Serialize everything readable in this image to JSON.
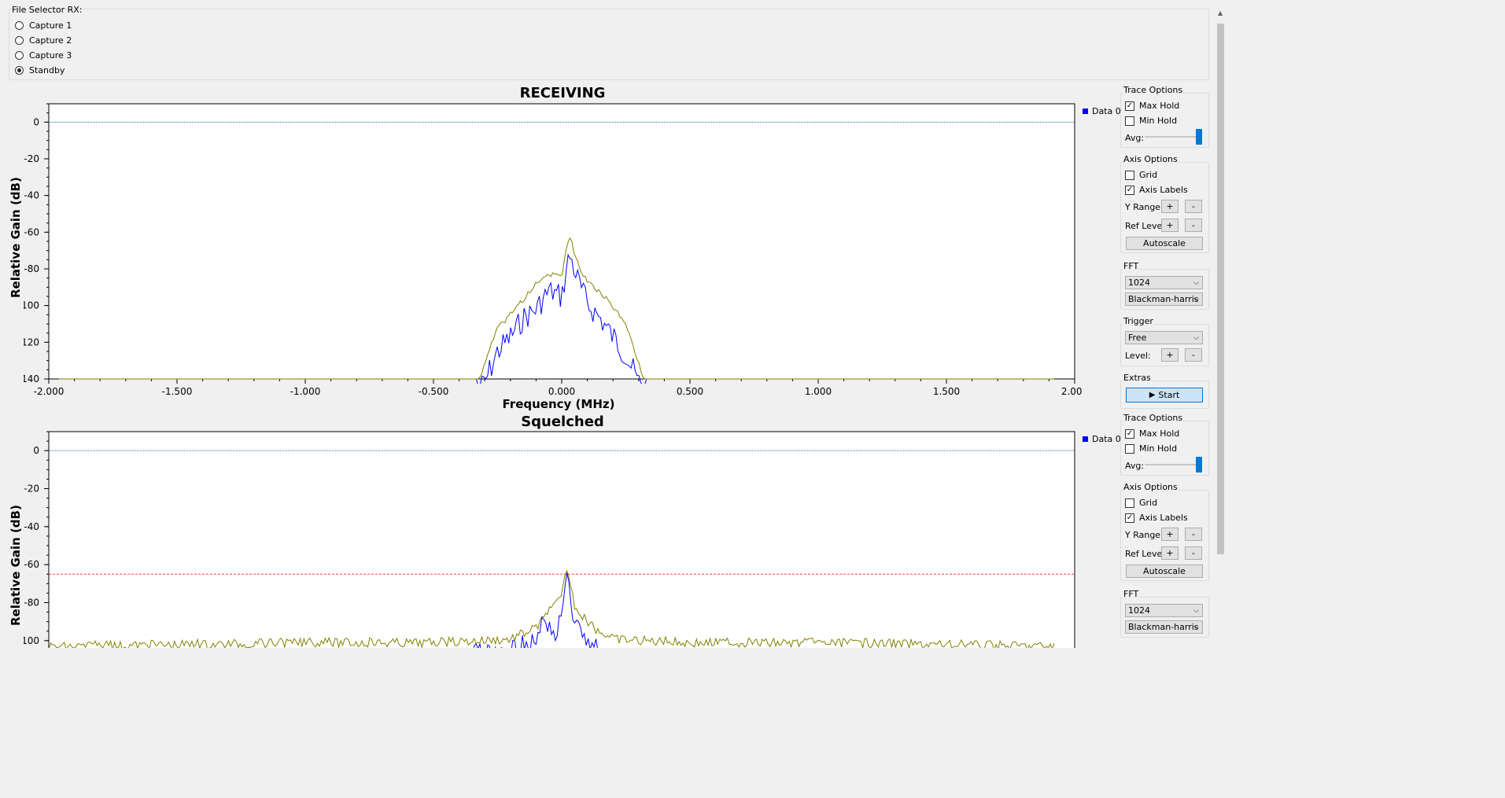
{
  "file_selector": {
    "title": "File Selector RX:",
    "options": [
      {
        "label": "Capture 1",
        "checked": false
      },
      {
        "label": "Capture 2",
        "checked": false
      },
      {
        "label": "Capture 3",
        "checked": false
      },
      {
        "label": "Standby",
        "checked": true
      }
    ]
  },
  "plots": [
    {
      "title": "RECEIVING",
      "ylabel": "Relative Gain (dB)",
      "xlabel": "Frequency (MHz)",
      "legend": "Data 0"
    },
    {
      "title": "Squelched",
      "ylabel": "Relative Gain (dB)",
      "xlabel": "",
      "legend": "Data 0"
    }
  ],
  "controls": [
    {
      "trace_options": "Trace Options",
      "max_hold": "Max Hold",
      "max_hold_checked": true,
      "min_hold": "Min Hold",
      "min_hold_checked": false,
      "avg": "Avg:",
      "avg_level": 1.0,
      "axis_options": "Axis Options",
      "grid": "Grid",
      "grid_checked": false,
      "axis_labels": "Axis Labels",
      "axis_labels_checked": true,
      "y_range": "Y Range:",
      "ref_level": "Ref Level:",
      "plus": "+",
      "minus": "-",
      "autoscale": "Autoscale",
      "fft": "FFT",
      "fft_size": "1024",
      "window": "Blackman-harris",
      "trigger": "Trigger",
      "trigger_mode": "Free",
      "level": "Level:",
      "extras": "Extras",
      "start": "Start"
    },
    {
      "trace_options": "Trace Options",
      "max_hold": "Max Hold",
      "max_hold_checked": true,
      "min_hold": "Min Hold",
      "min_hold_checked": false,
      "avg": "Avg:",
      "avg_level": 1.0,
      "axis_options": "Axis Options",
      "grid": "Grid",
      "grid_checked": false,
      "axis_labels": "Axis Labels",
      "axis_labels_checked": true,
      "y_range": "Y Range:",
      "ref_level": "Ref Level:",
      "plus": "+",
      "minus": "-",
      "autoscale": "Autoscale",
      "fft": "FFT",
      "fft_size": "1024",
      "window": "Blackman-harris"
    }
  ],
  "chart_data": [
    {
      "type": "line",
      "title": "RECEIVING",
      "xlabel": "Frequency (MHz)",
      "ylabel": "Relative Gain (dB)",
      "xlim": [
        -2.0,
        2.0
      ],
      "ylim": [
        -140,
        10
      ],
      "x_ticks": [
        "-2.000",
        "-1.500",
        "-1.000",
        "-0.500",
        "0.000",
        "0.500",
        "1.000",
        "1.500",
        "2.000"
      ],
      "y_ticks": [
        "0",
        "-20",
        "-40",
        "-60",
        "-80",
        "-100",
        "-120",
        "-140"
      ],
      "reference_line": 0,
      "legend": "Data 0",
      "series": [
        {
          "name": "Data 0",
          "color": "#0000ff",
          "x": [
            -2.0,
            -0.33,
            -0.3,
            -0.25,
            -0.2,
            -0.15,
            -0.1,
            -0.05,
            0.0,
            0.03,
            0.06,
            0.1,
            0.15,
            0.2,
            0.25,
            0.3,
            0.33,
            2.0
          ],
          "y": [
            -140,
            -140,
            -135,
            -118,
            -110,
            -100,
            -95,
            -85,
            -88,
            -65,
            -78,
            -92,
            -100,
            -110,
            -120,
            -135,
            -140,
            -140
          ]
        },
        {
          "name": "Max Hold",
          "color": "#808000",
          "x": [
            -2.0,
            -0.32,
            -0.3,
            -0.25,
            -0.2,
            -0.15,
            -0.1,
            -0.05,
            0.0,
            0.03,
            0.06,
            0.1,
            0.15,
            0.2,
            0.25,
            0.3,
            0.32,
            2.0
          ],
          "y": [
            -140,
            -140,
            -130,
            -112,
            -104,
            -96,
            -88,
            -82,
            -84,
            -60,
            -76,
            -86,
            -92,
            -100,
            -110,
            -130,
            -140,
            -140
          ]
        }
      ]
    },
    {
      "type": "line",
      "title": "Squelched",
      "ylabel": "Relative Gain (dB)",
      "xlim": [
        -2.0,
        2.0
      ],
      "ylim": [
        -110,
        10
      ],
      "y_ticks": [
        "0",
        "-20",
        "-40",
        "-60",
        "-80",
        "-100"
      ],
      "reference_line": 0,
      "threshold_line": -65,
      "legend": "Data 0",
      "series": [
        {
          "name": "Data 0",
          "color": "#0000ff",
          "x": [
            -2.0,
            -1.0,
            -0.5,
            -0.1,
            -0.07,
            -0.02,
            0.0,
            0.02,
            0.05,
            0.1,
            0.2,
            0.5,
            1.0,
            2.0
          ],
          "y": [
            -105,
            -105,
            -105,
            -96,
            -83,
            -92,
            -78,
            -61,
            -85,
            -96,
            -104,
            -105,
            -105,
            -105
          ]
        },
        {
          "name": "Max Hold",
          "color": "#808000",
          "x": [
            -2.0,
            -1.0,
            -0.5,
            -0.2,
            -0.1,
            -0.05,
            0.0,
            0.02,
            0.05,
            0.1,
            0.2,
            0.5,
            1.0,
            2.0
          ],
          "y": [
            -102,
            -100,
            -100,
            -98,
            -92,
            -84,
            -76,
            -60,
            -80,
            -90,
            -98,
            -100,
            -100,
            -102
          ]
        }
      ]
    }
  ]
}
